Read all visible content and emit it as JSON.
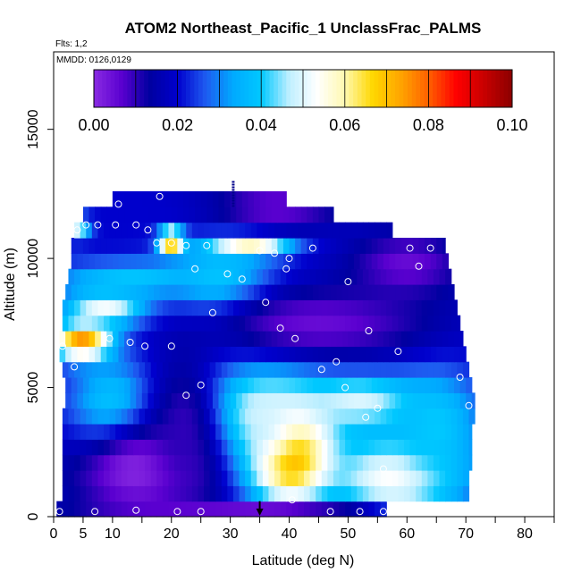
{
  "chart_data": {
    "type": "heatmap",
    "title": "ATOM2 Northeast_Pacific_1 UnclassFrac_PALMS",
    "flights_label": "Flts: 1,2",
    "dates_label": "MMDD: 0126,0129",
    "xlabel": "Latitude (deg N)",
    "ylabel": "Altitude (m)",
    "xlim": [
      0,
      85
    ],
    "ylim": [
      0,
      18000
    ],
    "x_ticks": [
      0,
      5,
      10,
      20,
      30,
      40,
      50,
      60,
      70,
      80
    ],
    "x_tick_labels": [
      "0",
      "5",
      "10",
      "20",
      "30",
      "40",
      "50",
      "60",
      "70",
      "80"
    ],
    "y_ticks": [
      0,
      5000,
      10000,
      15000
    ],
    "y_tick_labels": [
      "0",
      "5000",
      "10000",
      "15000"
    ],
    "colorbar": {
      "min": 0.0,
      "max": 0.1,
      "tick_values": [
        0.0,
        0.02,
        0.04,
        0.06,
        0.08,
        0.1
      ],
      "tick_labels": [
        "0.00",
        "0.02",
        "0.04",
        "0.06",
        "0.08",
        "0.10"
      ],
      "colors": [
        "#8a2be2",
        "#5a00d0",
        "#0000a0",
        "#0000cd",
        "#1e5af0",
        "#00aaff",
        "#00c8ff",
        "#bfefff",
        "#ffffff",
        "#fff8b0",
        "#ffd700",
        "#ffa500",
        "#ff6000",
        "#ff0000",
        "#c80000",
        "#8b0000"
      ]
    },
    "altitude_bands_m": [
      300,
      900,
      1500,
      2100,
      2700,
      3300,
      3900,
      4500,
      5100,
      5700,
      6300,
      6900,
      7500,
      8100,
      8700,
      9300,
      9900,
      10500,
      11100,
      11700,
      12300
    ],
    "band_lat_ranges": [
      [
        0.5,
        56.5
      ],
      [
        1.5,
        70.5
      ],
      [
        1.5,
        70.5
      ],
      [
        1.5,
        71
      ],
      [
        1.5,
        71
      ],
      [
        1.5,
        71
      ],
      [
        1.5,
        71.5
      ],
      [
        2,
        71.5
      ],
      [
        2,
        71
      ],
      [
        1.5,
        70.5
      ],
      [
        1,
        70
      ],
      [
        1,
        69.5
      ],
      [
        1.5,
        69
      ],
      [
        1.5,
        68.5
      ],
      [
        2,
        68
      ],
      [
        2.5,
        67.5
      ],
      [
        3,
        67
      ],
      [
        3,
        66.5
      ],
      [
        3.5,
        57.5
      ],
      [
        5,
        47.5
      ],
      [
        10,
        39.5
      ]
    ],
    "fields": [
      {
        "lat": 40,
        "alt": 2500,
        "value": 0.09,
        "sigma_lat": 5,
        "sigma_alt": 1400
      },
      {
        "lat": 35,
        "alt": 3800,
        "value": 0.05,
        "sigma_lat": 7,
        "sigma_alt": 1600
      },
      {
        "lat": 5,
        "alt": 6800,
        "value": 0.08,
        "sigma_lat": 3.5,
        "sigma_alt": 500
      },
      {
        "lat": 9,
        "alt": 8100,
        "value": 0.055,
        "sigma_lat": 5,
        "sigma_alt": 500
      },
      {
        "lat": 33,
        "alt": 10500,
        "value": 0.065,
        "sigma_lat": 5,
        "sigma_alt": 300
      },
      {
        "lat": 20,
        "alt": 10700,
        "value": 0.085,
        "sigma_lat": 1.5,
        "sigma_alt": 300
      },
      {
        "lat": 4,
        "alt": 11200,
        "value": 0.05,
        "sigma_lat": 1.5,
        "sigma_alt": 300
      },
      {
        "lat": 52,
        "alt": 4500,
        "value": 0.05,
        "sigma_lat": 8,
        "sigma_alt": 800
      },
      {
        "lat": 58,
        "alt": 1500,
        "value": 0.055,
        "sigma_lat": 8,
        "sigma_alt": 1200
      },
      {
        "lat": 65,
        "alt": 3500,
        "value": 0.04,
        "sigma_lat": 5,
        "sigma_alt": 1500
      },
      {
        "lat": 10,
        "alt": 4000,
        "value": 0.045,
        "sigma_lat": 5,
        "sigma_alt": 1400
      },
      {
        "lat": 28,
        "alt": 9000,
        "value": 0.045,
        "sigma_lat": 6,
        "sigma_alt": 1000
      },
      {
        "lat": 14,
        "alt": 9200,
        "value": 0.04,
        "sigma_lat": 10,
        "sigma_alt": 500
      },
      {
        "lat": 15,
        "alt": 1800,
        "value": 0.0,
        "sigma_lat": 9,
        "sigma_alt": 1400
      },
      {
        "lat": 22,
        "alt": 3500,
        "value": 0.01,
        "sigma_lat": 4,
        "sigma_alt": 2200
      },
      {
        "lat": 45,
        "alt": 7500,
        "value": 0.005,
        "sigma_lat": 14,
        "sigma_alt": 1000
      },
      {
        "lat": 60,
        "alt": 9800,
        "value": 0.005,
        "sigma_lat": 7,
        "sigma_alt": 900
      },
      {
        "lat": 38,
        "alt": 12000,
        "value": 0.005,
        "sigma_lat": 8,
        "sigma_alt": 600
      },
      {
        "lat": 35,
        "alt": 300,
        "value": 0.005,
        "sigma_lat": 18,
        "sigma_alt": 250
      }
    ],
    "base_value": 0.02,
    "sample_points": [
      [
        1,
        200
      ],
      [
        7,
        200
      ],
      [
        14,
        250
      ],
      [
        21,
        200
      ],
      [
        25,
        200
      ],
      [
        40.5,
        650
      ],
      [
        47,
        200
      ],
      [
        52,
        200
      ],
      [
        56,
        200
      ],
      [
        56,
        1850
      ],
      [
        53,
        3850
      ],
      [
        55,
        4200
      ],
      [
        49.5,
        5000
      ],
      [
        45.5,
        5700
      ],
      [
        48,
        6000
      ],
      [
        70.5,
        4300
      ],
      [
        69,
        5400
      ],
      [
        22.5,
        4700
      ],
      [
        25,
        5100
      ],
      [
        3.5,
        5800
      ],
      [
        1.5,
        6600
      ],
      [
        9.5,
        6900
      ],
      [
        15.5,
        6600
      ],
      [
        20,
        6600
      ],
      [
        13,
        6750
      ],
      [
        41,
        6900
      ],
      [
        38.5,
        7300
      ],
      [
        53.5,
        7200
      ],
      [
        58.5,
        6400
      ],
      [
        27,
        7900
      ],
      [
        36,
        8300
      ],
      [
        50,
        9100
      ],
      [
        24,
        9600
      ],
      [
        32,
        9200
      ],
      [
        29.5,
        9400
      ],
      [
        39.5,
        9600
      ],
      [
        40,
        10000
      ],
      [
        44,
        10400
      ],
      [
        37.5,
        10200
      ],
      [
        35,
        10300
      ],
      [
        62,
        9700
      ],
      [
        60.5,
        10400
      ],
      [
        64,
        10400
      ],
      [
        26,
        10500
      ],
      [
        22.5,
        10500
      ],
      [
        17.5,
        10600
      ],
      [
        20,
        10600
      ],
      [
        4,
        11100
      ],
      [
        5.5,
        11300
      ],
      [
        7.5,
        11300
      ],
      [
        10.5,
        11300
      ],
      [
        14,
        11300
      ],
      [
        16,
        11100
      ],
      [
        11,
        12100
      ],
      [
        18,
        12400
      ],
      [
        70,
        10900
      ]
    ],
    "marker": {
      "lat": 35,
      "alt_top": 600,
      "alt_bottom": 0
    },
    "tick_mark": {
      "lat": 30.5,
      "alt_top": 13000,
      "alt_bottom": 12000
    }
  }
}
